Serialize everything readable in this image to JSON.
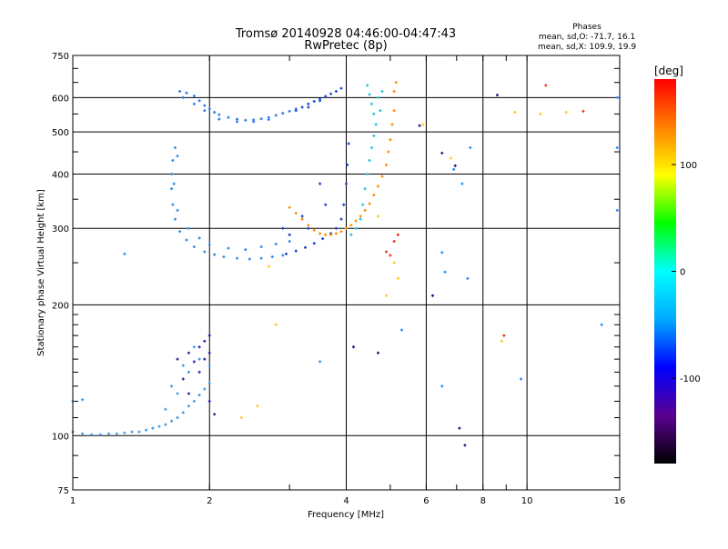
{
  "chart_data": {
    "type": "scatter",
    "title": "Tromsø 20140928 04:46:00-04:47:43",
    "subtitle": "RwPretec (8p)",
    "xlabel": "Frequency [MHz]",
    "ylabel": "Stationary phase Virtual Height [km]",
    "x_scale": "log",
    "y_scale": "log",
    "xlim": [
      1,
      16
    ],
    "ylim": [
      75,
      750
    ],
    "x_ticks": [
      1,
      2,
      4,
      6,
      8,
      10,
      16
    ],
    "y_ticks": [
      75,
      100,
      200,
      300,
      400,
      500,
      600,
      750
    ],
    "grid": true,
    "phases_box": {
      "title": "Phases",
      "line_o": "mean, sd,O: -71.7, 16.1",
      "line_x": "mean, sd,X: 109.9, 19.9"
    },
    "colorbar": {
      "label": "[deg]",
      "min": -180,
      "max": 180,
      "ticks": [
        100,
        0,
        -100
      ],
      "colors": [
        "#000000",
        "#5a0090",
        "#0000ff",
        "#00aaff",
        "#00ffff",
        "#00ff00",
        "#ffff00",
        "#ff8000",
        "#ff0000"
      ]
    },
    "series": [
      {
        "color": "#2a7ae8",
        "points": [
          [
            1.72,
            620
          ],
          [
            1.78,
            615
          ],
          [
            1.85,
            605
          ],
          [
            1.9,
            590
          ],
          [
            1.95,
            575
          ],
          [
            2.0,
            565
          ],
          [
            2.05,
            555
          ],
          [
            2.1,
            548
          ],
          [
            2.2,
            540
          ],
          [
            2.3,
            535
          ],
          [
            2.4,
            532
          ],
          [
            2.5,
            533
          ],
          [
            2.6,
            536
          ],
          [
            2.7,
            540
          ],
          [
            2.8,
            546
          ],
          [
            2.9,
            552
          ],
          [
            3.0,
            558
          ],
          [
            3.1,
            565
          ],
          [
            1.75,
            600
          ],
          [
            1.85,
            580
          ],
          [
            1.95,
            560
          ],
          [
            2.1,
            535
          ],
          [
            2.3,
            528
          ],
          [
            2.5,
            528
          ],
          [
            2.7,
            534
          ]
        ]
      },
      {
        "color": "#1848d8",
        "points": [
          [
            3.1,
            560
          ],
          [
            3.2,
            570
          ],
          [
            3.3,
            580
          ],
          [
            3.4,
            588
          ],
          [
            3.5,
            596
          ],
          [
            3.6,
            604
          ],
          [
            3.7,
            612
          ],
          [
            3.8,
            620
          ],
          [
            3.9,
            630
          ],
          [
            3.3,
            570
          ],
          [
            3.5,
            590
          ]
        ]
      },
      {
        "color": "#2a8ce8",
        "points": [
          [
            1.68,
            460
          ],
          [
            1.66,
            430
          ],
          [
            1.65,
            400
          ],
          [
            1.65,
            370
          ],
          [
            1.66,
            340
          ],
          [
            1.68,
            315
          ],
          [
            1.72,
            295
          ],
          [
            1.78,
            282
          ],
          [
            1.85,
            272
          ],
          [
            1.95,
            265
          ],
          [
            2.05,
            261
          ],
          [
            2.15,
            258
          ],
          [
            2.3,
            256
          ],
          [
            2.45,
            255
          ],
          [
            2.6,
            256
          ],
          [
            2.75,
            258
          ],
          [
            2.9,
            260
          ],
          [
            1.7,
            440
          ],
          [
            1.67,
            380
          ],
          [
            1.7,
            330
          ],
          [
            1.8,
            300
          ],
          [
            1.9,
            285
          ],
          [
            2.0,
            275
          ],
          [
            2.2,
            270
          ],
          [
            2.4,
            268
          ],
          [
            2.6,
            272
          ],
          [
            2.8,
            276
          ],
          [
            3.0,
            280
          ]
        ]
      },
      {
        "color": "#1a3ec8",
        "points": [
          [
            2.95,
            262
          ],
          [
            3.1,
            266
          ],
          [
            3.25,
            271
          ],
          [
            3.4,
            277
          ],
          [
            3.55,
            284
          ],
          [
            3.7,
            292
          ],
          [
            3.8,
            300
          ],
          [
            3.9,
            315
          ],
          [
            3.95,
            340
          ],
          [
            4.0,
            380
          ],
          [
            4.02,
            420
          ],
          [
            4.05,
            470
          ],
          [
            3.6,
            340
          ],
          [
            3.5,
            380
          ],
          [
            3.3,
            300
          ],
          [
            3.2,
            320
          ],
          [
            3.0,
            290
          ],
          [
            2.9,
            300
          ]
        ]
      },
      {
        "color": "#ff8a00",
        "points": [
          [
            3.0,
            335
          ],
          [
            3.1,
            325
          ],
          [
            3.2,
            315
          ],
          [
            3.3,
            305
          ],
          [
            3.4,
            297
          ],
          [
            3.5,
            292
          ],
          [
            3.6,
            290
          ],
          [
            3.7,
            290
          ],
          [
            3.8,
            292
          ],
          [
            3.9,
            295
          ],
          [
            4.0,
            300
          ],
          [
            4.1,
            305
          ],
          [
            4.2,
            312
          ],
          [
            4.3,
            320
          ],
          [
            4.4,
            330
          ],
          [
            4.5,
            342
          ],
          [
            4.6,
            358
          ],
          [
            4.7,
            375
          ],
          [
            4.8,
            395
          ],
          [
            4.9,
            420
          ],
          [
            4.95,
            450
          ],
          [
            5.0,
            480
          ],
          [
            5.05,
            520
          ],
          [
            5.1,
            560
          ],
          [
            5.1,
            620
          ],
          [
            5.15,
            650
          ]
        ]
      },
      {
        "color": "#20c4e0",
        "points": [
          [
            4.45,
            640
          ],
          [
            4.5,
            610
          ],
          [
            4.55,
            580
          ],
          [
            4.6,
            550
          ],
          [
            4.65,
            520
          ],
          [
            4.6,
            490
          ],
          [
            4.55,
            460
          ],
          [
            4.5,
            430
          ],
          [
            4.45,
            400
          ],
          [
            4.4,
            370
          ],
          [
            4.35,
            340
          ],
          [
            4.3,
            315
          ],
          [
            4.2,
            300
          ],
          [
            4.1,
            290
          ],
          [
            4.7,
            600
          ],
          [
            4.75,
            560
          ],
          [
            4.8,
            620
          ]
        ]
      },
      {
        "color": "#3a9ae8",
        "points": [
          [
            1.0,
            120
          ],
          [
            1.05,
            121
          ],
          [
            1.0,
            102
          ],
          [
            1.05,
            101
          ],
          [
            1.1,
            100.5
          ],
          [
            1.15,
            100.5
          ],
          [
            1.2,
            101
          ],
          [
            1.25,
            101
          ],
          [
            1.3,
            101.5
          ],
          [
            1.35,
            102
          ],
          [
            1.4,
            102
          ],
          [
            1.45,
            103
          ],
          [
            1.5,
            104
          ],
          [
            1.55,
            105
          ],
          [
            1.6,
            106
          ],
          [
            1.65,
            108
          ],
          [
            1.7,
            110
          ],
          [
            1.75,
            113
          ],
          [
            1.8,
            117
          ],
          [
            1.85,
            120
          ],
          [
            1.9,
            124
          ],
          [
            1.95,
            128
          ],
          [
            2.0,
            132
          ],
          [
            1.6,
            115
          ],
          [
            1.7,
            125
          ],
          [
            1.8,
            140
          ],
          [
            1.9,
            150
          ],
          [
            2.0,
            145
          ],
          [
            1.65,
            130
          ],
          [
            1.75,
            145
          ],
          [
            1.85,
            160
          ]
        ]
      },
      {
        "color": "#3a1ab0",
        "points": [
          [
            1.7,
            150
          ],
          [
            1.8,
            155
          ],
          [
            1.85,
            148
          ],
          [
            1.9,
            160
          ],
          [
            1.95,
            165
          ],
          [
            2.0,
            170
          ],
          [
            1.75,
            135
          ],
          [
            1.9,
            140
          ],
          [
            1.95,
            150
          ],
          [
            2.0,
            155
          ],
          [
            1.8,
            125
          ],
          [
            2.0,
            120
          ],
          [
            2.05,
            112
          ]
        ]
      },
      {
        "color": "#ffcc20",
        "points": [
          [
            2.35,
            110
          ],
          [
            2.55,
            117
          ],
          [
            2.8,
            180
          ],
          [
            2.7,
            245
          ],
          [
            4.9,
            210
          ],
          [
            5.2,
            230
          ],
          [
            5.9,
            520
          ],
          [
            6.8,
            435
          ],
          [
            8.8,
            165
          ],
          [
            9.4,
            555
          ],
          [
            10.7,
            550
          ],
          [
            12.2,
            555
          ],
          [
            4.7,
            320
          ],
          [
            5.1,
            250
          ]
        ]
      },
      {
        "color": "#e83020",
        "points": [
          [
            4.9,
            265
          ],
          [
            5.0,
            260
          ],
          [
            5.1,
            280
          ],
          [
            5.2,
            290
          ],
          [
            11.0,
            640
          ],
          [
            13.3,
            558
          ],
          [
            8.9,
            170
          ]
        ]
      },
      {
        "color": "#1a1a80",
        "points": [
          [
            5.8,
            517
          ],
          [
            6.5,
            447
          ],
          [
            6.95,
            418
          ],
          [
            6.2,
            210
          ],
          [
            7.3,
            95
          ],
          [
            8.6,
            608
          ],
          [
            4.15,
            160
          ],
          [
            4.7,
            155
          ],
          [
            7.1,
            104
          ]
        ]
      },
      {
        "color": "#1e90ff",
        "points": [
          [
            1.3,
            262
          ],
          [
            6.6,
            238
          ],
          [
            6.5,
            264
          ],
          [
            7.4,
            230
          ],
          [
            6.5,
            130
          ],
          [
            9.7,
            135
          ],
          [
            14.6,
            180
          ],
          [
            6.9,
            410
          ],
          [
            7.2,
            380
          ],
          [
            7.5,
            460
          ],
          [
            15.8,
            600
          ],
          [
            15.8,
            460
          ],
          [
            15.8,
            330
          ],
          [
            3.5,
            148
          ],
          [
            5.3,
            175
          ]
        ]
      }
    ]
  }
}
